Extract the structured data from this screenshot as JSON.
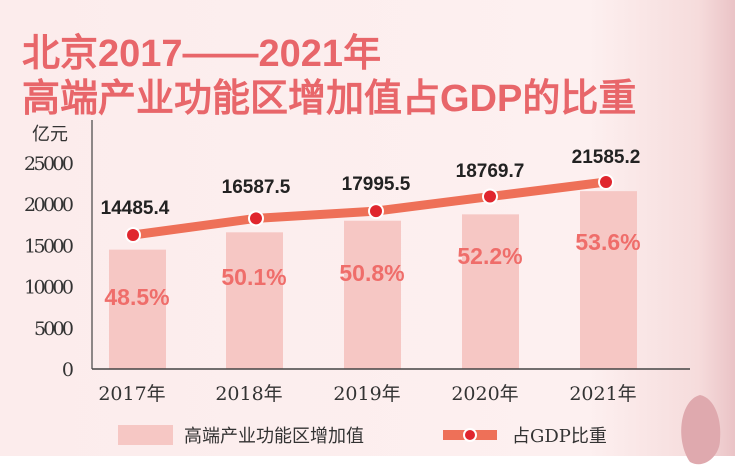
{
  "title_line1": "北京2017——2021年",
  "title_line2": "高端产业功能区增加值占GDP的比重",
  "chart_data": {
    "type": "bar+line",
    "categories": [
      "2017年",
      "2018年",
      "2019年",
      "2020年",
      "2021年"
    ],
    "ylabel": "亿元",
    "ylim": [
      0,
      25000
    ],
    "yticks": [
      "0",
      "5000",
      "10000",
      "15000",
      "20000",
      "25000"
    ],
    "series": [
      {
        "name": "高端产业功能区增加值",
        "type": "bar",
        "values": [
          14485.4,
          16587.5,
          17995.5,
          18769.7,
          21585.2
        ],
        "labels": [
          "14485.4",
          "16587.5",
          "17995.5",
          "18769.7",
          "21585.2"
        ],
        "color": "#f6c7c4"
      },
      {
        "name": "占GDP比重",
        "type": "line",
        "values": [
          48.5,
          50.1,
          50.8,
          52.2,
          53.6
        ],
        "labels": [
          "48.5%",
          "50.1%",
          "50.8%",
          "52.2%",
          "53.6%"
        ],
        "color": "#ee7058",
        "marker_color": "#e0262e"
      }
    ],
    "legend": "bottom"
  }
}
